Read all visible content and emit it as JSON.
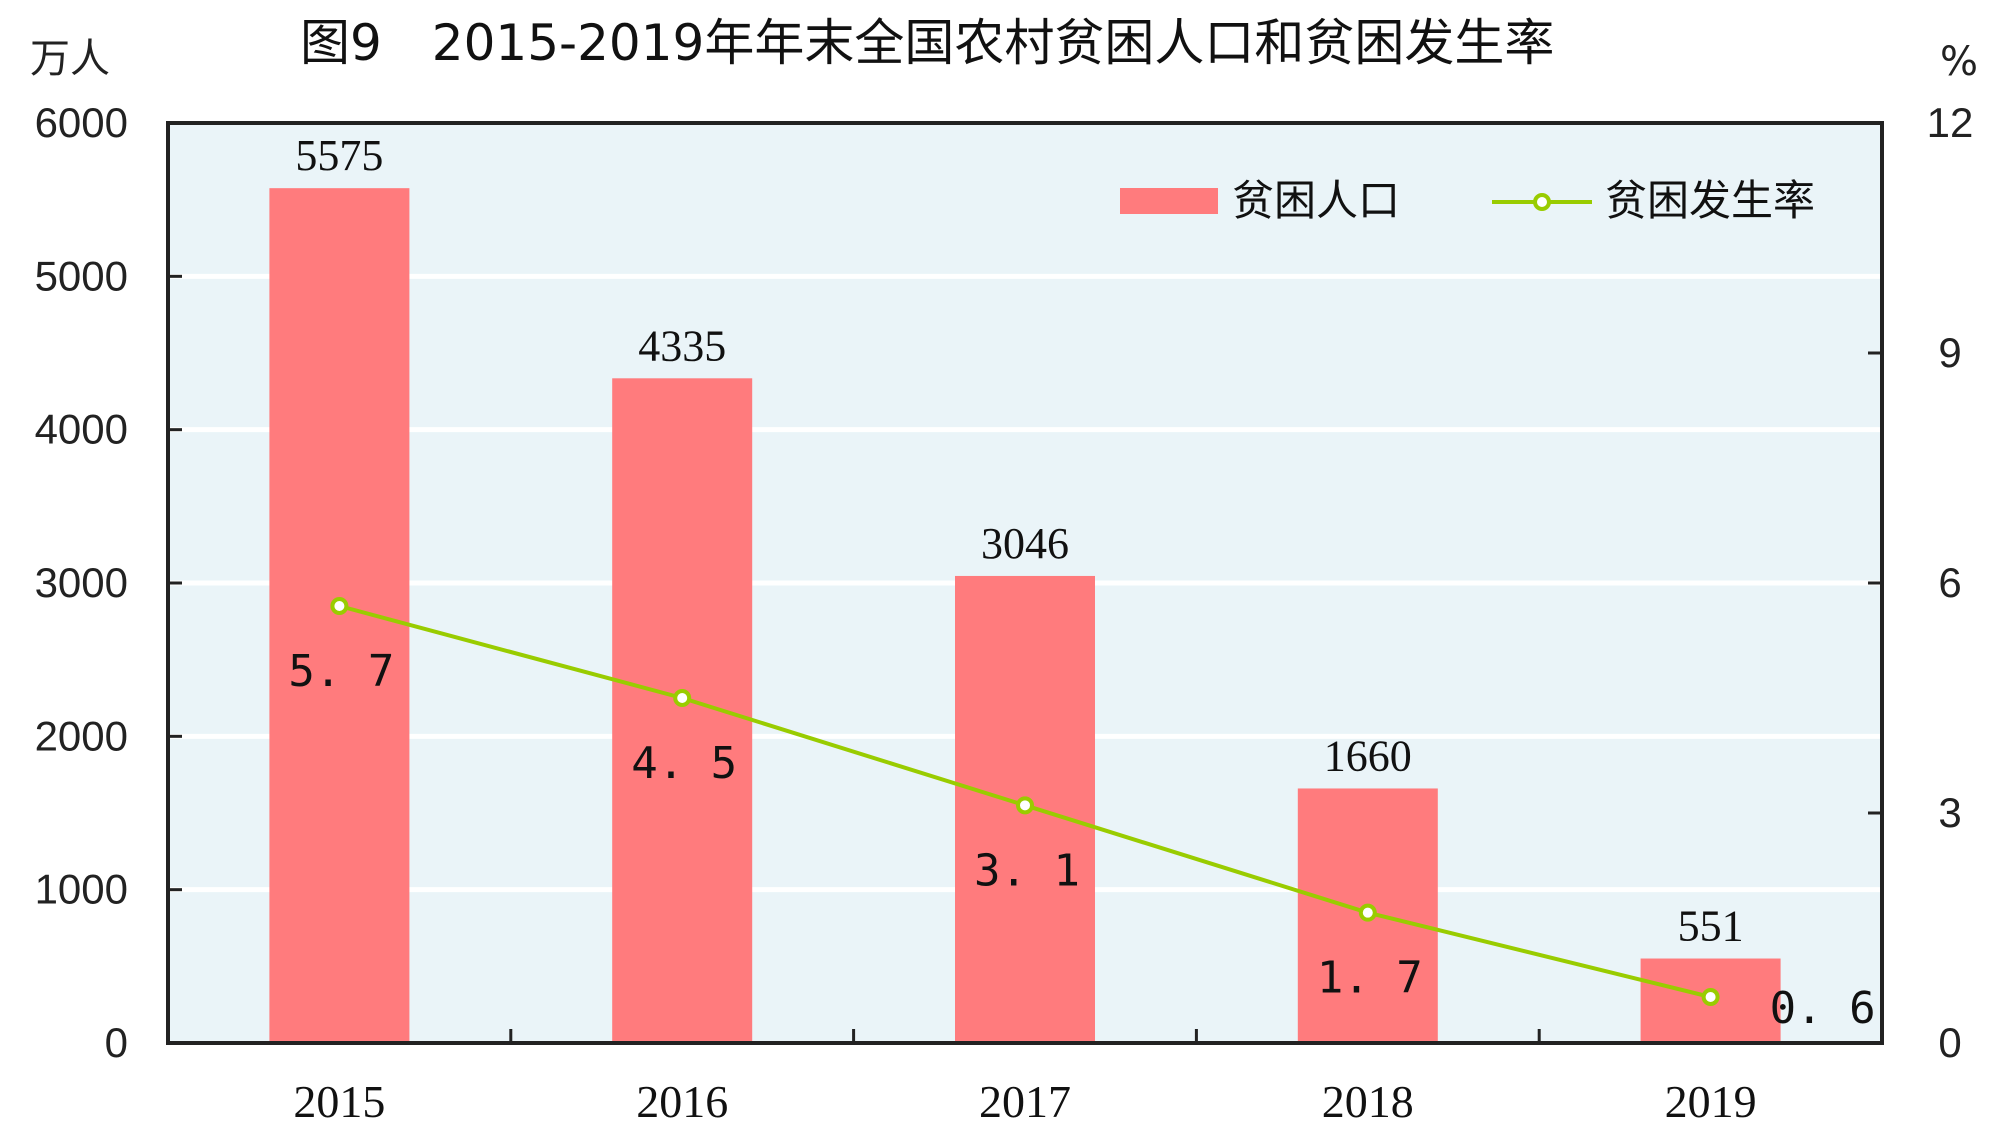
{
  "title": "图9　2015-2019年年末全国农村贫困人口和贫困发生率",
  "left_unit": "万人",
  "right_unit": "%",
  "colors": {
    "bar": "#FF7B7D",
    "line": "#99CC00",
    "marker_fill": "#FFFFFF",
    "plot_bg": "#EAF4F8",
    "gridline": "#FFFFFF",
    "axis": "#222222"
  },
  "legend": {
    "bar_label": "贫困人口",
    "line_label": "贫困发生率"
  },
  "chart_data": {
    "type": "bar+line",
    "title": "图9　2015-2019年年末全国农村贫困人口和贫困发生率",
    "categories": [
      "2015",
      "2016",
      "2017",
      "2018",
      "2019"
    ],
    "series": [
      {
        "name": "贫困人口",
        "type": "bar",
        "axis": "left",
        "unit": "万人",
        "values": [
          5575,
          4335,
          3046,
          1660,
          551
        ]
      },
      {
        "name": "贫困发生率",
        "type": "line",
        "axis": "right",
        "unit": "%",
        "values": [
          5.7,
          4.5,
          3.1,
          1.7,
          0.6
        ]
      }
    ],
    "bar_value_labels": [
      "5575",
      "4335",
      "3046",
      "1660",
      "551"
    ],
    "line_value_labels": [
      "5.7",
      "4.5",
      "3.1",
      "1.7",
      "0.6"
    ],
    "xlabel": "",
    "ylabel_left": "万人",
    "ylabel_right": "%",
    "ylim_left": [
      0,
      6000
    ],
    "ylim_right": [
      0,
      12
    ],
    "yticks_left": [
      "0",
      "1000",
      "2000",
      "3000",
      "4000",
      "5000",
      "6000"
    ],
    "yticks_right": [
      "0",
      "3",
      "6",
      "9",
      "12"
    ],
    "grid": true,
    "legend_position": "top-right inside"
  }
}
